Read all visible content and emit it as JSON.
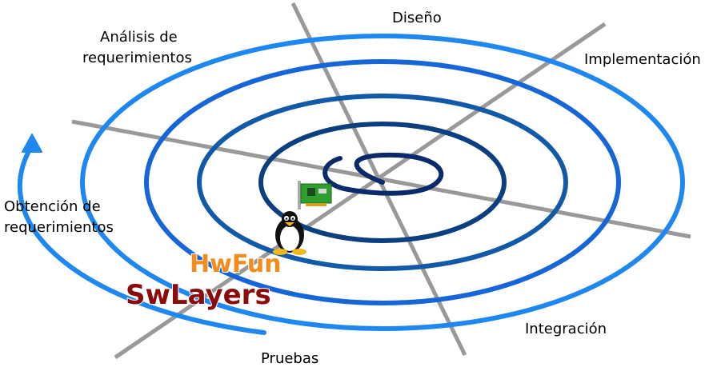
{
  "diagram": {
    "phases": {
      "analisis_line1": "Análisis de",
      "analisis_line2": "requerimientos",
      "diseno": "Diseño",
      "implementacion": "Implementación",
      "obtencion_line1": "Obtención de",
      "obtencion_line2": "requerimientos",
      "integracion": "Integración",
      "pruebas": "Pruebas"
    },
    "logos": {
      "hwfun": "HwFun",
      "swlayers": "SwLayers"
    },
    "icons": [
      "network-card-icon",
      "tux-penguin-icon",
      "arrow-head-icon"
    ],
    "colors": {
      "axis": "#999999",
      "spiral_outer": "#1e88f0",
      "spiral_mid": "#1560d0",
      "spiral_inner": "#0e4f8e",
      "spiral_core": "#0a2a6a",
      "hwfun_fill": "#f28c1c",
      "swlayers_fill": "#8b0a0a"
    }
  }
}
